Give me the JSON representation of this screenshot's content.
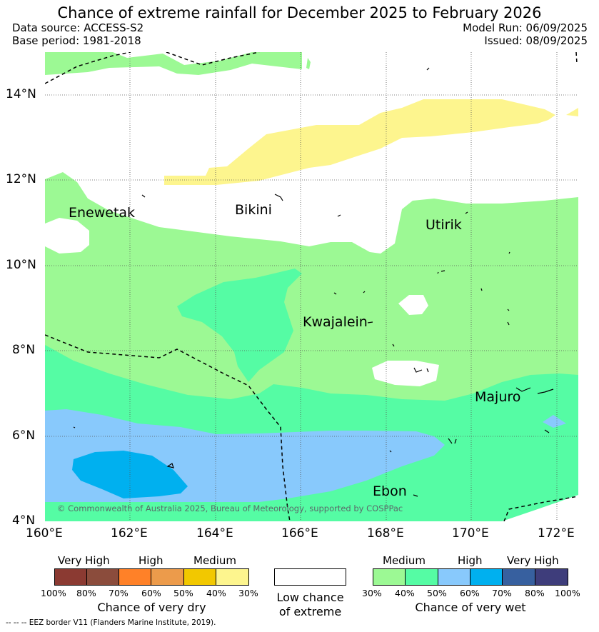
{
  "title": "Chance of extreme rainfall for December 2025 to February 2026",
  "data_source": "Data source: ACCESS-S2",
  "base_period": "Base period: 1981-2018",
  "model_run": "Model Run: 06/09/2025",
  "issued": "Issued: 08/09/2025",
  "lat_labels": [
    "14°N",
    "12°N",
    "10°N",
    "8°N",
    "6°N",
    "4°N"
  ],
  "lon_labels": [
    "160°E",
    "162°E",
    "164°E",
    "166°E",
    "168°E",
    "170°E",
    "172°E"
  ],
  "places": {
    "enewetak": "Enewetak",
    "bikini": "Bikini",
    "utirik": "Utirik",
    "kwajalein": "Kwajalein",
    "majuro": "Majuro",
    "ebon": "Ebon"
  },
  "copyright": "© Commonwealth of Australia 2025, Bureau of Meteorology, supported by COSPPac",
  "colors": {
    "dry": [
      "#8b3a32",
      "#8b4c3c",
      "#ff8128",
      "#ec9b4b",
      "#f2c800",
      "#fdf58e"
    ],
    "wet": [
      "#9cf994",
      "#55fca4",
      "#88c9fc",
      "#00b0ef",
      "#37609f",
      "#3e3d7b"
    ],
    "low": "#ffffff"
  },
  "legend": {
    "dry_groups": [
      "Very High",
      "High",
      "Medium"
    ],
    "dry_pcts": [
      "100%",
      "80%",
      "70%",
      "60%",
      "50%",
      "40%",
      "30%"
    ],
    "dry_caption": "Chance of very dry",
    "low_caption": "Low chance of extreme",
    "wet_groups": [
      "Medium",
      "High",
      "Very High"
    ],
    "wet_pcts": [
      "30%",
      "40%",
      "50%",
      "60%",
      "70%",
      "80%",
      "100%"
    ],
    "wet_caption": "Chance of very wet"
  },
  "eez_note": "--  --  -- EEZ border V11 (Flanders Marine Institute, 2019)."
}
